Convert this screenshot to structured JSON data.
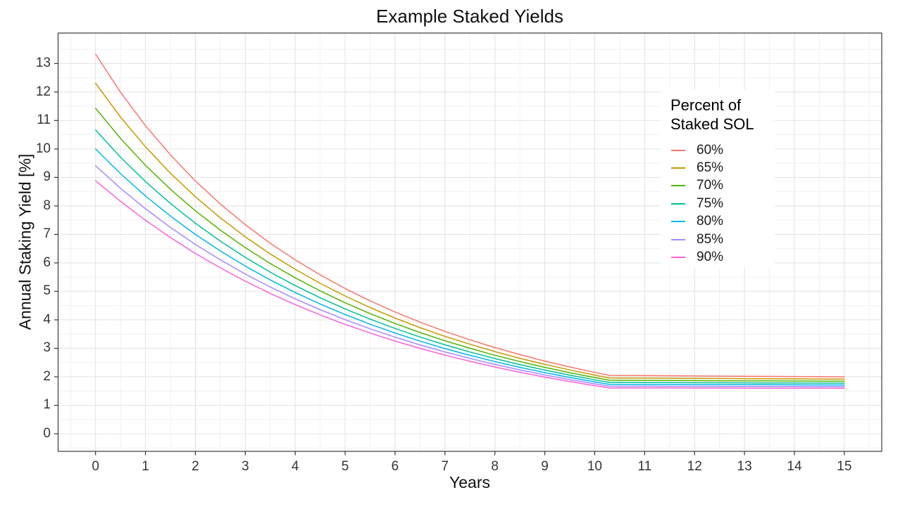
{
  "chart": {
    "background": "#ffffff",
    "panel_border_color": "#474747",
    "tick_color": "#333333",
    "grid_major_color": "#e4e4e4",
    "grid_minor_color": "#f1f1f1"
  },
  "chart_data": {
    "type": "line",
    "title": "Example Staked Yields",
    "xlabel": "Years",
    "ylabel": "Annual Staking Yield [%]",
    "legend_title": "Percent of Staked SOL",
    "legend_title_lines": [
      "Percent of",
      "Staked SOL"
    ],
    "legend_position": "inside-right",
    "grid": {
      "major": true,
      "minor": true
    },
    "x_ticks": [
      0,
      1,
      2,
      3,
      4,
      5,
      6,
      7,
      8,
      9,
      10,
      11,
      12,
      13,
      14,
      15
    ],
    "y_ticks": [
      0,
      1,
      2,
      3,
      4,
      5,
      6,
      7,
      8,
      9,
      10,
      11,
      12,
      13
    ],
    "x_domain": [
      -0.75,
      15.75
    ],
    "y_domain": [
      -0.617,
      14.07
    ],
    "x": [
      0,
      0.5,
      1,
      1.5,
      2,
      2.5,
      3,
      3.5,
      4,
      4.5,
      5,
      5.5,
      6,
      6.5,
      7,
      7.5,
      8,
      8.5,
      9,
      9.5,
      10,
      10.3,
      10.5,
      11,
      11.5,
      12,
      12.5,
      13,
      13.5,
      14,
      14.5,
      15
    ],
    "series": [
      {
        "name": "60%",
        "color": "#F8766D",
        "values": [
          13.333,
          11.991,
          10.82,
          9.79,
          8.878,
          8.067,
          7.342,
          6.692,
          6.107,
          5.579,
          5.101,
          4.669,
          4.276,
          3.919,
          3.593,
          3.297,
          3.026,
          2.779,
          2.552,
          2.345,
          2.156,
          2.05,
          2.047,
          2.042,
          2.036,
          2.031,
          2.025,
          2.02,
          2.015,
          2.01,
          2.005,
          2.0
        ]
      },
      {
        "name": "65%",
        "color": "#C49A00",
        "values": [
          12.308,
          11.121,
          10.075,
          9.148,
          8.32,
          7.58,
          6.914,
          6.315,
          5.773,
          5.282,
          4.837,
          4.432,
          4.064,
          3.728,
          3.422,
          3.142,
          2.886,
          2.652,
          2.437,
          2.241,
          2.061,
          1.96,
          1.958,
          1.954,
          1.949,
          1.945,
          1.941,
          1.936,
          1.932,
          1.928,
          1.924,
          1.92
        ]
      },
      {
        "name": "70%",
        "color": "#53B400",
        "values": [
          11.429,
          10.369,
          9.426,
          8.585,
          7.829,
          7.148,
          6.534,
          5.978,
          5.474,
          5.016,
          4.599,
          4.219,
          3.872,
          3.555,
          3.266,
          3.001,
          2.758,
          2.536,
          2.332,
          2.145,
          1.974,
          1.878,
          1.876,
          1.873,
          1.869,
          1.866,
          1.862,
          1.859,
          1.856,
          1.852,
          1.849,
          1.846
        ]
      },
      {
        "name": "75%",
        "color": "#00C094",
        "values": [
          10.667,
          9.712,
          8.856,
          8.087,
          7.392,
          6.763,
          6.193,
          5.676,
          5.204,
          4.775,
          4.383,
          4.025,
          3.698,
          3.398,
          3.123,
          2.872,
          2.641,
          2.43,
          2.236,
          2.058,
          1.894,
          1.802,
          1.801,
          1.798,
          1.795,
          1.793,
          1.79,
          1.788,
          1.785,
          1.783,
          1.78,
          1.778
        ]
      },
      {
        "name": "80%",
        "color": "#00B6EB",
        "values": [
          10.0,
          9.133,
          8.351,
          7.644,
          7.001,
          6.418,
          5.887,
          5.402,
          4.96,
          4.556,
          4.186,
          3.848,
          3.538,
          3.254,
          2.993,
          2.754,
          2.534,
          2.333,
          2.147,
          1.977,
          1.82,
          1.732,
          1.731,
          1.729,
          1.727,
          1.726,
          1.724,
          1.722,
          1.72,
          1.718,
          1.716,
          1.714
        ]
      },
      {
        "name": "85%",
        "color": "#A58AFF",
        "values": [
          9.412,
          8.62,
          7.901,
          7.246,
          6.65,
          6.106,
          5.609,
          5.154,
          4.738,
          4.356,
          4.007,
          3.686,
          3.392,
          3.121,
          2.873,
          2.645,
          2.435,
          2.243,
          2.065,
          1.902,
          1.752,
          1.668,
          1.667,
          1.666,
          1.664,
          1.663,
          1.662,
          1.66,
          1.659,
          1.658,
          1.656,
          1.655
        ]
      },
      {
        "name": "90%",
        "color": "#FB61D7",
        "values": [
          8.889,
          8.161,
          7.496,
          6.889,
          6.332,
          5.823,
          5.356,
          4.928,
          4.534,
          4.173,
          3.842,
          3.537,
          3.257,
          2.999,
          2.762,
          2.544,
          2.344,
          2.159,
          1.989,
          1.833,
          1.689,
          1.608,
          1.607,
          1.607,
          1.606,
          1.605,
          1.604,
          1.603,
          1.602,
          1.602,
          1.601,
          1.6
        ]
      }
    ]
  }
}
